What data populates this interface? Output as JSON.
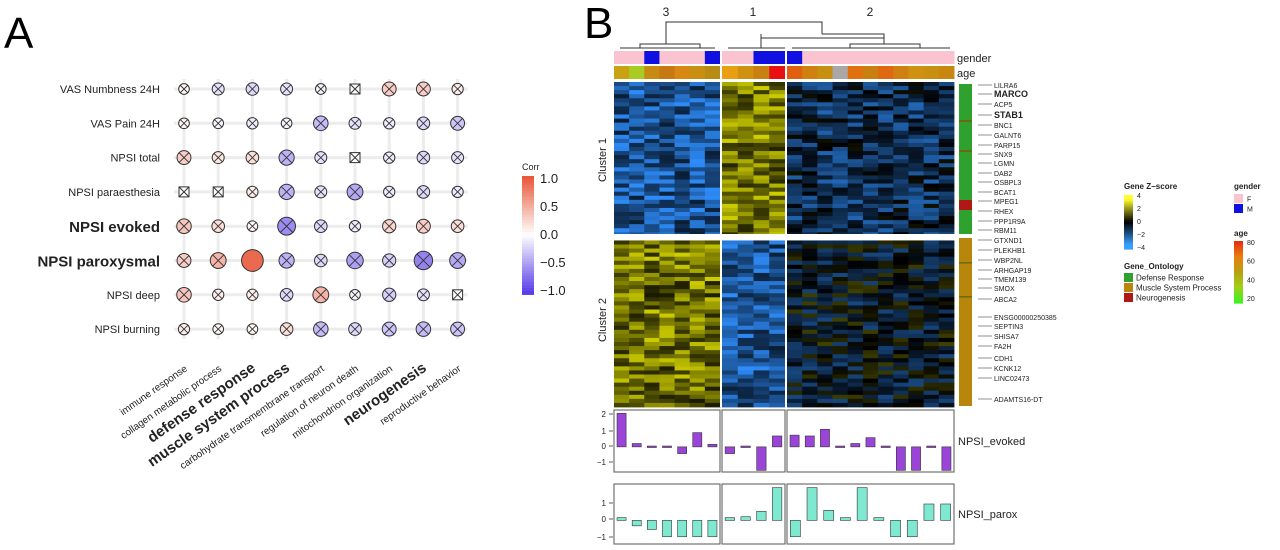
{
  "panel_labels": [
    "A",
    "B"
  ],
  "chart_data": [
    {
      "type": "heatmap",
      "panel": "A",
      "rows": [
        "VAS Numbness 24H",
        "VAS Pain 24H",
        "NPSI total",
        "NPSI paraesthesia",
        "NPSI evoked",
        "NPSI paroxysmal",
        "NPSI deep",
        "NPSI burning"
      ],
      "bold_rows": [
        "NPSI evoked",
        "NPSI paroxysmal"
      ],
      "columns": [
        "immune response",
        "collagen metabolic process",
        "defense response",
        "muscle system process",
        "carbohydrate transmembrane transport",
        "regulation of neuron death",
        "mitochondrion organization",
        "neurogenesis",
        "reproductive behavior"
      ],
      "bold_columns": [
        "defense response",
        "muscle system process",
        "neurogenesis"
      ],
      "values": [
        [
          0.05,
          -0.15,
          -0.2,
          -0.15,
          -0.05,
          0.02,
          0.3,
          0.3,
          0.1
        ],
        [
          0.05,
          -0.05,
          -0.1,
          -0.05,
          -0.35,
          -0.15,
          -0.1,
          -0.2,
          -0.3
        ],
        [
          0.3,
          0.15,
          0.2,
          -0.4,
          -0.15,
          0.02,
          -0.1,
          -0.2,
          -0.15
        ],
        [
          0.02,
          0.02,
          0.1,
          -0.4,
          -0.15,
          -0.45,
          -0.1,
          -0.2,
          -0.1
        ],
        [
          0.35,
          0.2,
          0.05,
          -0.6,
          -0.2,
          -0.1,
          0.25,
          0.3,
          0.2
        ],
        [
          0.3,
          0.45,
          0.9,
          -0.4,
          -0.2,
          -0.5,
          -0.25,
          -0.65,
          -0.45
        ],
        [
          0.35,
          0.1,
          0.1,
          -0.2,
          0.45,
          -0.05,
          -0.25,
          -0.15,
          0.02
        ],
        [
          0.1,
          0.05,
          0.05,
          0.2,
          -0.35,
          -0.2,
          -0.3,
          -0.35,
          -0.3
        ]
      ],
      "legend_title": "Corr",
      "legend_ticks": [
        "1.0",
        "0.5",
        "0.0",
        "−0.5",
        "−1.0"
      ],
      "color_positive": "#e8593c",
      "color_negative": "#5a3ee6",
      "color_zero": "#ffffff"
    },
    {
      "type": "heatmap",
      "panel": "B",
      "cluster_labels": [
        "3",
        "1",
        "2"
      ],
      "annotation_rows": [
        "gender",
        "age"
      ],
      "row_cluster_labels": [
        "Cluster 1",
        "Cluster 2"
      ],
      "genes": [
        "LILRA6",
        "MARCO",
        "ACP5",
        "STAB1",
        "BNC1",
        "GALNT6",
        "PARP15",
        "SNX9",
        "LGMN",
        "DAB2",
        "OSBPL3",
        "BCAT1",
        "MPEG1",
        "RHEX",
        "PPP1R9A",
        "RBM11",
        "GTXND1",
        "PLEKHB1",
        "WBP2NL",
        "ARHGAP19",
        "TMEM139",
        "SMOX",
        "ABCA2",
        "ENSG00000250385",
        "SEPTIN3",
        "SHISA7",
        "FA2H",
        "CDH1",
        "KCNK12",
        "LINC02473",
        "ADAMTS16-DT"
      ],
      "bold_genes": [
        "MARCO",
        "STAB1"
      ],
      "legend_zscore": {
        "title": "Gene Z−score",
        "ticks": [
          "4",
          "2",
          "0",
          "−2",
          "−4"
        ]
      },
      "legend_gender": {
        "title": "gender",
        "items": [
          {
            "label": "F",
            "color": "#f9c3cf"
          },
          {
            "label": "M",
            "color": "#1010e0"
          }
        ]
      },
      "legend_age": {
        "title": "age",
        "ticks": [
          "80",
          "60",
          "40",
          "20"
        ]
      },
      "legend_ontology": {
        "title": "Gene_Ontology",
        "items": [
          {
            "label": "Defense Response",
            "color": "#2ea12e"
          },
          {
            "label": "Muscle System Process",
            "color": "#b8860b"
          },
          {
            "label": "Neurogenesis",
            "color": "#b01818"
          }
        ]
      }
    },
    {
      "type": "bar",
      "panel": "B",
      "label": "NPSI_evoked",
      "ylim": [
        -1.5,
        2.2
      ],
      "yticks": [
        "2",
        "1",
        "0",
        "−1"
      ],
      "groups": [
        [
          2.0,
          0.2,
          0.05,
          0.05,
          -0.4,
          0.85,
          0.15
        ],
        [
          -0.4,
          0.05,
          -1.4,
          0.65
        ],
        [
          0.7,
          0.65,
          1.05,
          0.05,
          0.2,
          0.55,
          0.05,
          -1.4,
          -1.4,
          0.05,
          -1.4
        ]
      ],
      "color": "#9a44d8"
    },
    {
      "type": "bar",
      "panel": "B",
      "label": "NPSI_parox",
      "ylim": [
        -1.3,
        2.0
      ],
      "yticks": [
        "1",
        "0",
        "−1"
      ],
      "groups": [
        [
          0.15,
          -0.3,
          -0.5,
          -0.9,
          -0.9,
          -0.9,
          -0.9
        ],
        [
          0.15,
          0.2,
          0.5,
          1.8
        ],
        [
          -0.9,
          1.8,
          0.55,
          0.15,
          1.8,
          0.15,
          -0.9,
          -0.9,
          0.9,
          0.9
        ]
      ],
      "color": "#7ee8d0"
    }
  ]
}
